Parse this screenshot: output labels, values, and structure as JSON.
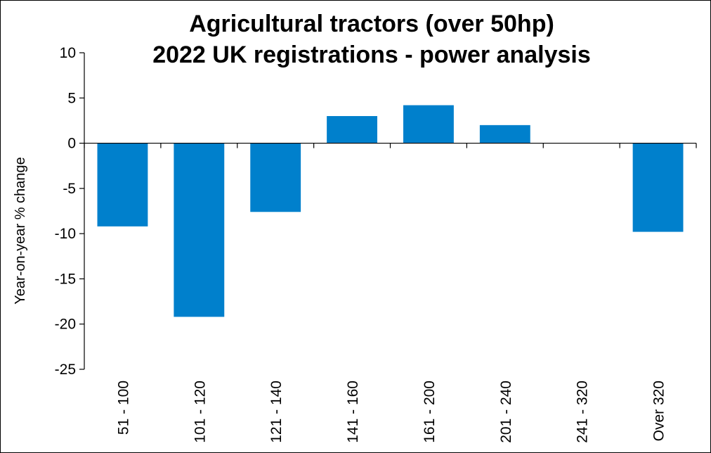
{
  "chart_data": {
    "type": "bar",
    "title_line1": "Agricultural tractors (over 50hp)",
    "title_line2": "2022 UK registrations - power analysis",
    "xlabel": "",
    "ylabel": "Year-on-year  % change",
    "categories": [
      "51 - 100",
      "101 - 120",
      "121 - 140",
      "141 - 160",
      "161 - 200",
      "201 - 240",
      "241 - 320",
      "Over 320"
    ],
    "values": [
      -9.2,
      -19.2,
      -7.6,
      3.0,
      4.2,
      2.0,
      0.0,
      -9.8
    ],
    "ylim": [
      -25,
      10
    ],
    "yticks": [
      10,
      5,
      0,
      -5,
      -10,
      -15,
      -20,
      -25
    ],
    "ytick_labels": [
      "10",
      "5",
      "0",
      "-5",
      "-10",
      "-15",
      "-20",
      "-25"
    ],
    "grid": false,
    "bar_color": "#0080cc"
  }
}
